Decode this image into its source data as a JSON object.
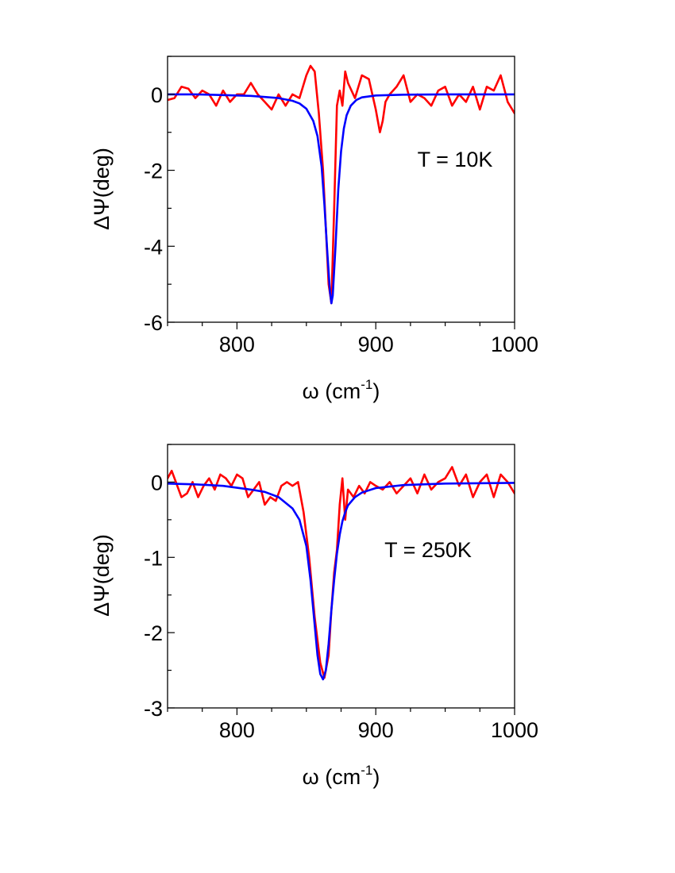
{
  "chart_data": [
    {
      "type": "line",
      "annotation": "T = 10K",
      "xlabel": "ω (cm",
      "xlabel_sup": "-1",
      "xlabel_close": ")",
      "ylabel": "ΔΨ(deg)",
      "xlim": [
        750,
        1000
      ],
      "ylim": [
        -6,
        1
      ],
      "xticks": [
        800,
        900,
        1000
      ],
      "xtick_labels": [
        "800",
        "900",
        "1000"
      ],
      "yticks": [
        0,
        -2,
        -4,
        -6
      ],
      "ytick_labels": [
        "0",
        "-2",
        "-4",
        "-6"
      ],
      "x_minor_step": 25,
      "y_minor_step": 1,
      "grid": false,
      "series": [
        {
          "color": "#ff0000",
          "x": [
            750,
            755,
            760,
            765,
            770,
            775,
            780,
            785,
            790,
            795,
            800,
            805,
            810,
            815,
            820,
            825,
            830,
            835,
            840,
            845,
            850,
            853,
            856,
            859,
            862,
            864,
            866,
            868,
            870,
            872,
            874,
            876,
            878,
            880,
            885,
            890,
            895,
            900,
            903,
            905,
            907,
            910,
            915,
            920,
            925,
            930,
            935,
            940,
            945,
            950,
            955,
            960,
            965,
            970,
            975,
            980,
            985,
            990,
            995,
            1000
          ],
          "y": [
            -0.15,
            -0.1,
            0.2,
            0.15,
            -0.1,
            0.1,
            0.0,
            -0.3,
            0.1,
            -0.2,
            0.0,
            0.0,
            0.3,
            0.0,
            -0.2,
            -0.4,
            0.0,
            -0.3,
            0.0,
            -0.1,
            0.5,
            0.75,
            0.6,
            -0.5,
            -2.0,
            -3.5,
            -5.0,
            -5.5,
            -3.0,
            -0.3,
            0.1,
            -0.3,
            0.6,
            0.3,
            -0.1,
            0.5,
            0.4,
            -0.4,
            -1.0,
            -0.7,
            -0.2,
            0.0,
            0.2,
            0.5,
            -0.2,
            0.0,
            -0.1,
            -0.3,
            0.1,
            0.2,
            -0.3,
            0.0,
            -0.2,
            0.2,
            -0.4,
            0.2,
            0.1,
            0.5,
            -0.2,
            -0.5
          ]
        },
        {
          "color": "#0000ff",
          "x": [
            750,
            770,
            790,
            810,
            830,
            840,
            845,
            850,
            855,
            858,
            861,
            863,
            865,
            867,
            868,
            869,
            871,
            873,
            875,
            877,
            879,
            882,
            886,
            890,
            900,
            920,
            950,
            1000
          ],
          "y": [
            0.0,
            0.0,
            -0.02,
            -0.04,
            -0.1,
            -0.17,
            -0.24,
            -0.38,
            -0.7,
            -1.1,
            -1.9,
            -2.9,
            -4.1,
            -5.2,
            -5.5,
            -5.3,
            -4.0,
            -2.5,
            -1.5,
            -0.9,
            -0.55,
            -0.3,
            -0.15,
            -0.08,
            -0.03,
            -0.01,
            0.0,
            0.0
          ]
        }
      ]
    },
    {
      "type": "line",
      "annotation": "T = 250K",
      "xlabel": "ω (cm",
      "xlabel_sup": "-1",
      "xlabel_close": ")",
      "ylabel": "ΔΨ(deg)",
      "xlim": [
        750,
        1000
      ],
      "ylim": [
        -3,
        0.5
      ],
      "xticks": [
        800,
        900,
        1000
      ],
      "xtick_labels": [
        "800",
        "900",
        "1000"
      ],
      "yticks": [
        0,
        -1,
        -2,
        -3
      ],
      "ytick_labels": [
        "0",
        "-1",
        "-2",
        "-3"
      ],
      "x_minor_step": 25,
      "y_minor_step": 0.5,
      "grid": false,
      "series": [
        {
          "color": "#ff0000",
          "x": [
            750,
            753,
            756,
            760,
            764,
            768,
            772,
            776,
            780,
            784,
            788,
            792,
            796,
            800,
            804,
            808,
            812,
            816,
            820,
            824,
            828,
            832,
            836,
            840,
            844,
            848,
            852,
            856,
            860,
            863,
            866,
            868,
            870,
            872,
            874,
            876,
            878,
            880,
            884,
            888,
            892,
            896,
            900,
            905,
            910,
            915,
            920,
            925,
            930,
            935,
            940,
            945,
            950,
            955,
            960,
            965,
            970,
            975,
            980,
            985,
            990,
            995,
            1000
          ],
          "y": [
            0.05,
            0.15,
            0.0,
            -0.2,
            -0.15,
            0.0,
            -0.2,
            -0.05,
            0.05,
            -0.1,
            0.1,
            0.05,
            -0.05,
            0.1,
            0.05,
            -0.2,
            -0.1,
            0.0,
            -0.3,
            -0.2,
            -0.25,
            -0.05,
            0.0,
            -0.05,
            0.0,
            -0.4,
            -1.0,
            -1.8,
            -2.4,
            -2.6,
            -2.3,
            -1.7,
            -1.2,
            -0.9,
            -0.3,
            0.05,
            -0.5,
            -0.1,
            -0.2,
            -0.05,
            -0.15,
            0.0,
            -0.05,
            -0.1,
            0.0,
            -0.15,
            -0.05,
            0.05,
            -0.15,
            0.1,
            -0.1,
            0.0,
            0.05,
            0.2,
            -0.05,
            0.1,
            -0.2,
            0.0,
            0.1,
            -0.2,
            0.1,
            0.0,
            -0.15
          ]
        },
        {
          "color": "#0000ff",
          "x": [
            750,
            770,
            790,
            810,
            820,
            830,
            840,
            845,
            850,
            853,
            856,
            858,
            860,
            862,
            864,
            866,
            868,
            870,
            872,
            874,
            876,
            878,
            880,
            885,
            890,
            900,
            920,
            950,
            1000
          ],
          "y": [
            -0.02,
            -0.03,
            -0.05,
            -0.1,
            -0.13,
            -0.2,
            -0.35,
            -0.5,
            -0.85,
            -1.3,
            -1.9,
            -2.3,
            -2.55,
            -2.62,
            -2.5,
            -2.15,
            -1.7,
            -1.3,
            -0.95,
            -0.7,
            -0.52,
            -0.4,
            -0.31,
            -0.2,
            -0.14,
            -0.08,
            -0.04,
            -0.02,
            -0.01
          ]
        }
      ]
    }
  ]
}
